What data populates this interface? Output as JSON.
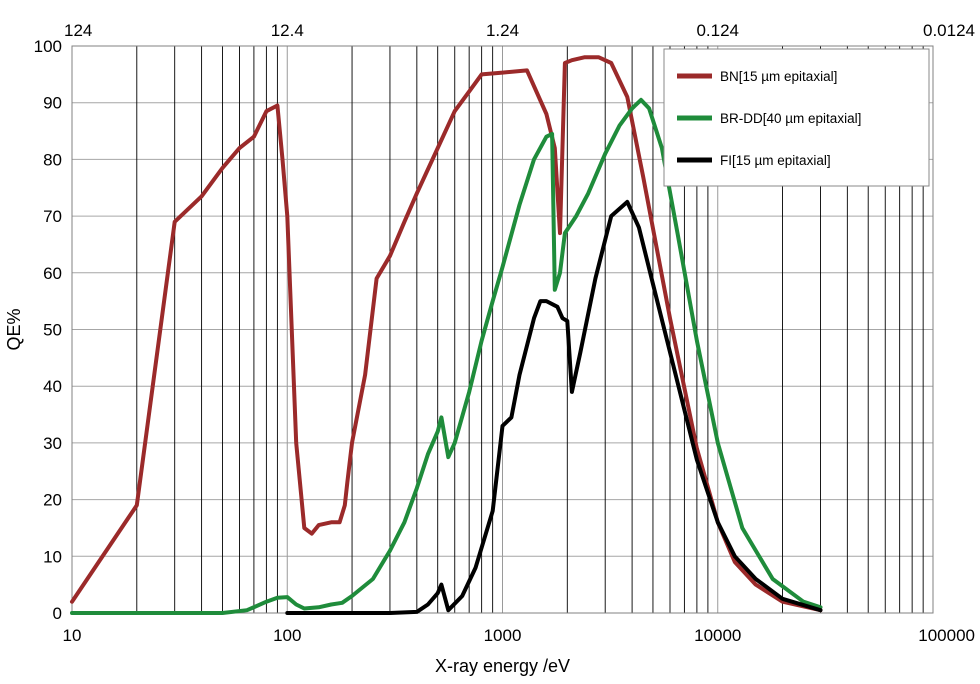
{
  "chart_data": {
    "type": "line",
    "title": "",
    "xlabel": "X-ray energy /eV",
    "ylabel": "QE%",
    "xscale": "log",
    "xlim": [
      10,
      100000
    ],
    "ylim": [
      0,
      100
    ],
    "y_ticks": [
      0,
      10,
      20,
      30,
      40,
      50,
      60,
      70,
      80,
      90,
      100
    ],
    "x_ticks": [
      {
        "value": 10,
        "label": "10"
      },
      {
        "value": 100,
        "label": "100"
      },
      {
        "value": 1000,
        "label": "1000"
      },
      {
        "value": 10000,
        "label": "10000"
      },
      {
        "value": 100000,
        "label": "100000"
      }
    ],
    "top_axis_ticks": [
      {
        "value": 10,
        "label": "124"
      },
      {
        "value": 100,
        "label": "12.4"
      },
      {
        "value": 1000,
        "label": "1.24"
      },
      {
        "value": 10000,
        "label": "0.124"
      },
      {
        "value": 100000,
        "label": "0.0124"
      }
    ],
    "grid": true,
    "legend_position": "top-right",
    "series": [
      {
        "name": "BN[15 µm epitaxial]",
        "color": "#9b2a2a",
        "points": [
          [
            10,
            2
          ],
          [
            20,
            19
          ],
          [
            30,
            69
          ],
          [
            40,
            73.5
          ],
          [
            50,
            78.5
          ],
          [
            60,
            82
          ],
          [
            70,
            84
          ],
          [
            80,
            88.5
          ],
          [
            90,
            89.5
          ],
          [
            95,
            80
          ],
          [
            100,
            70
          ],
          [
            110,
            30
          ],
          [
            120,
            15
          ],
          [
            130,
            14
          ],
          [
            140,
            15.5
          ],
          [
            160,
            16
          ],
          [
            175,
            16
          ],
          [
            185,
            19
          ],
          [
            190,
            23
          ],
          [
            200,
            30
          ],
          [
            230,
            42
          ],
          [
            260,
            59
          ],
          [
            300,
            63
          ],
          [
            350,
            69
          ],
          [
            400,
            74
          ],
          [
            500,
            82
          ],
          [
            600,
            88.5
          ],
          [
            700,
            92
          ],
          [
            800,
            95
          ],
          [
            1000,
            95.3
          ],
          [
            1300,
            95.7
          ],
          [
            1600,
            88
          ],
          [
            1750,
            82
          ],
          [
            1850,
            67
          ],
          [
            1950,
            97
          ],
          [
            2100,
            97.5
          ],
          [
            2400,
            98
          ],
          [
            2800,
            98
          ],
          [
            3200,
            97
          ],
          [
            3800,
            91
          ],
          [
            4500,
            77
          ],
          [
            6000,
            52
          ],
          [
            8000,
            29
          ],
          [
            10000,
            16
          ],
          [
            12000,
            9
          ],
          [
            15000,
            5
          ],
          [
            20000,
            2
          ],
          [
            30000,
            0.5
          ]
        ]
      },
      {
        "name": "BR-DD[40 µm epitaxial]",
        "color": "#1f8c3b",
        "points": [
          [
            10,
            0
          ],
          [
            50,
            0
          ],
          [
            65,
            0.5
          ],
          [
            80,
            2
          ],
          [
            90,
            2.7
          ],
          [
            100,
            2.8
          ],
          [
            110,
            1.5
          ],
          [
            120,
            0.8
          ],
          [
            140,
            1
          ],
          [
            160,
            1.5
          ],
          [
            180,
            1.8
          ],
          [
            200,
            3
          ],
          [
            250,
            6
          ],
          [
            300,
            11
          ],
          [
            350,
            16
          ],
          [
            400,
            22
          ],
          [
            450,
            28
          ],
          [
            500,
            32
          ],
          [
            520,
            34.5
          ],
          [
            560,
            27.5
          ],
          [
            600,
            30
          ],
          [
            700,
            39
          ],
          [
            800,
            48
          ],
          [
            900,
            55
          ],
          [
            1000,
            61
          ],
          [
            1200,
            72
          ],
          [
            1400,
            80
          ],
          [
            1600,
            84
          ],
          [
            1700,
            84.5
          ],
          [
            1750,
            57
          ],
          [
            1850,
            60
          ],
          [
            1950,
            67
          ],
          [
            2200,
            70
          ],
          [
            2500,
            74
          ],
          [
            3000,
            81
          ],
          [
            3500,
            86
          ],
          [
            4000,
            89
          ],
          [
            4400,
            90.5
          ],
          [
            4800,
            89
          ],
          [
            5500,
            82
          ],
          [
            6500,
            67
          ],
          [
            8000,
            48
          ],
          [
            10000,
            30
          ],
          [
            13000,
            15
          ],
          [
            18000,
            6
          ],
          [
            25000,
            2
          ],
          [
            30000,
            1
          ]
        ]
      },
      {
        "name": "FI[15 µm epitaxial]",
        "color": "#000000",
        "points": [
          [
            100,
            0
          ],
          [
            300,
            0
          ],
          [
            400,
            0.2
          ],
          [
            450,
            1.5
          ],
          [
            500,
            3.5
          ],
          [
            520,
            5
          ],
          [
            560,
            0.5
          ],
          [
            650,
            3
          ],
          [
            750,
            8
          ],
          [
            900,
            18
          ],
          [
            1000,
            33
          ],
          [
            1100,
            34.5
          ],
          [
            1200,
            42
          ],
          [
            1400,
            52
          ],
          [
            1500,
            55
          ],
          [
            1600,
            55
          ],
          [
            1800,
            54
          ],
          [
            1900,
            52
          ],
          [
            2000,
            51.5
          ],
          [
            2100,
            39
          ],
          [
            2300,
            46
          ],
          [
            2700,
            59
          ],
          [
            3200,
            70
          ],
          [
            3800,
            72.5
          ],
          [
            4300,
            68
          ],
          [
            5000,
            58
          ],
          [
            6000,
            46
          ],
          [
            8000,
            27
          ],
          [
            10000,
            16
          ],
          [
            12000,
            10
          ],
          [
            15000,
            6
          ],
          [
            20000,
            2.5
          ],
          [
            30000,
            0.5
          ]
        ]
      }
    ]
  }
}
